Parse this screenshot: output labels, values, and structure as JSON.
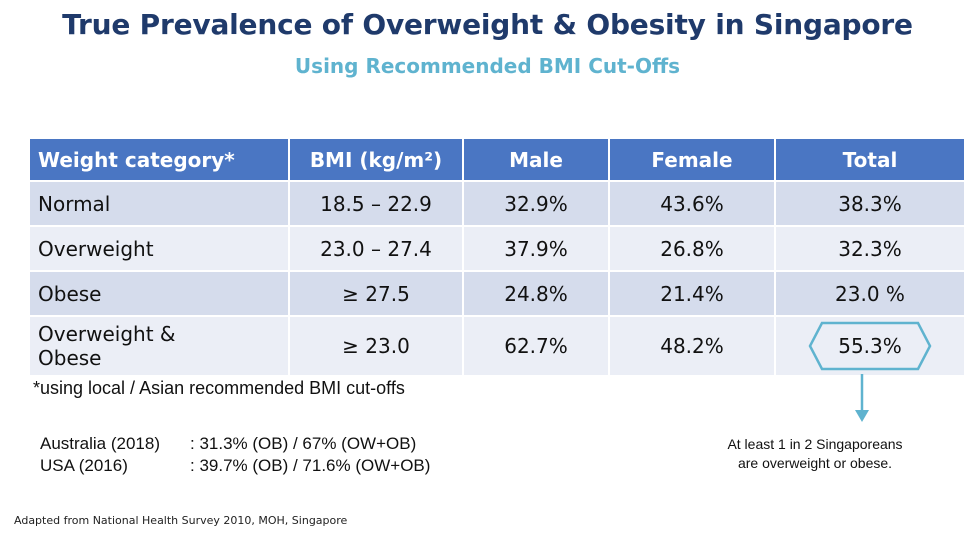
{
  "title": "True Prevalence of Overweight & Obesity in Singapore",
  "subtitle": "Using Recommended BMI Cut-Offs",
  "table": {
    "headers": [
      "Weight category*",
      "BMI (kg/m²)",
      "Male",
      "Female",
      "Total"
    ],
    "rows": [
      {
        "category": "Normal",
        "category_line2": "",
        "bmi": "18.5 – 22.9",
        "male": "32.9%",
        "female": "43.6%",
        "total": "38.3%"
      },
      {
        "category": "Overweight",
        "category_line2": "",
        "bmi": "23.0 – 27.4",
        "male": "37.9%",
        "female": "26.8%",
        "total": "32.3%"
      },
      {
        "category": "Obese",
        "category_line2": "",
        "bmi": "≥ 27.5",
        "male": "24.8%",
        "female": "21.4%",
        "total": "23.0 %"
      },
      {
        "category": "Overweight &",
        "category_line2": "Obese",
        "bmi": "≥ 23.0",
        "male": "62.7%",
        "female": "48.2%",
        "total": "55.3%"
      }
    ]
  },
  "footnote": "*using local / Asian recommended BMI cut-offs",
  "comparisons": [
    {
      "label": "Australia (2018)",
      "value": ": 31.3% (OB) / 67% (OW+OB)"
    },
    {
      "label": "USA (2016)",
      "value": ": 39.7% (OB) / 71.6% (OW+OB)"
    }
  ],
  "callout": {
    "line1": "At least 1 in 2 Singaporeans",
    "line2": "are overweight or obese."
  },
  "source": "Adapted from National Health Survey  2010, MOH, Singapore",
  "colors": {
    "title": "#1f3a6b",
    "subtitle": "#5fb3cf",
    "header_bg": "#4a76c3",
    "row_odd": "#d5dcec",
    "row_even": "#ebeef6",
    "highlight": "#5fb3cf"
  }
}
